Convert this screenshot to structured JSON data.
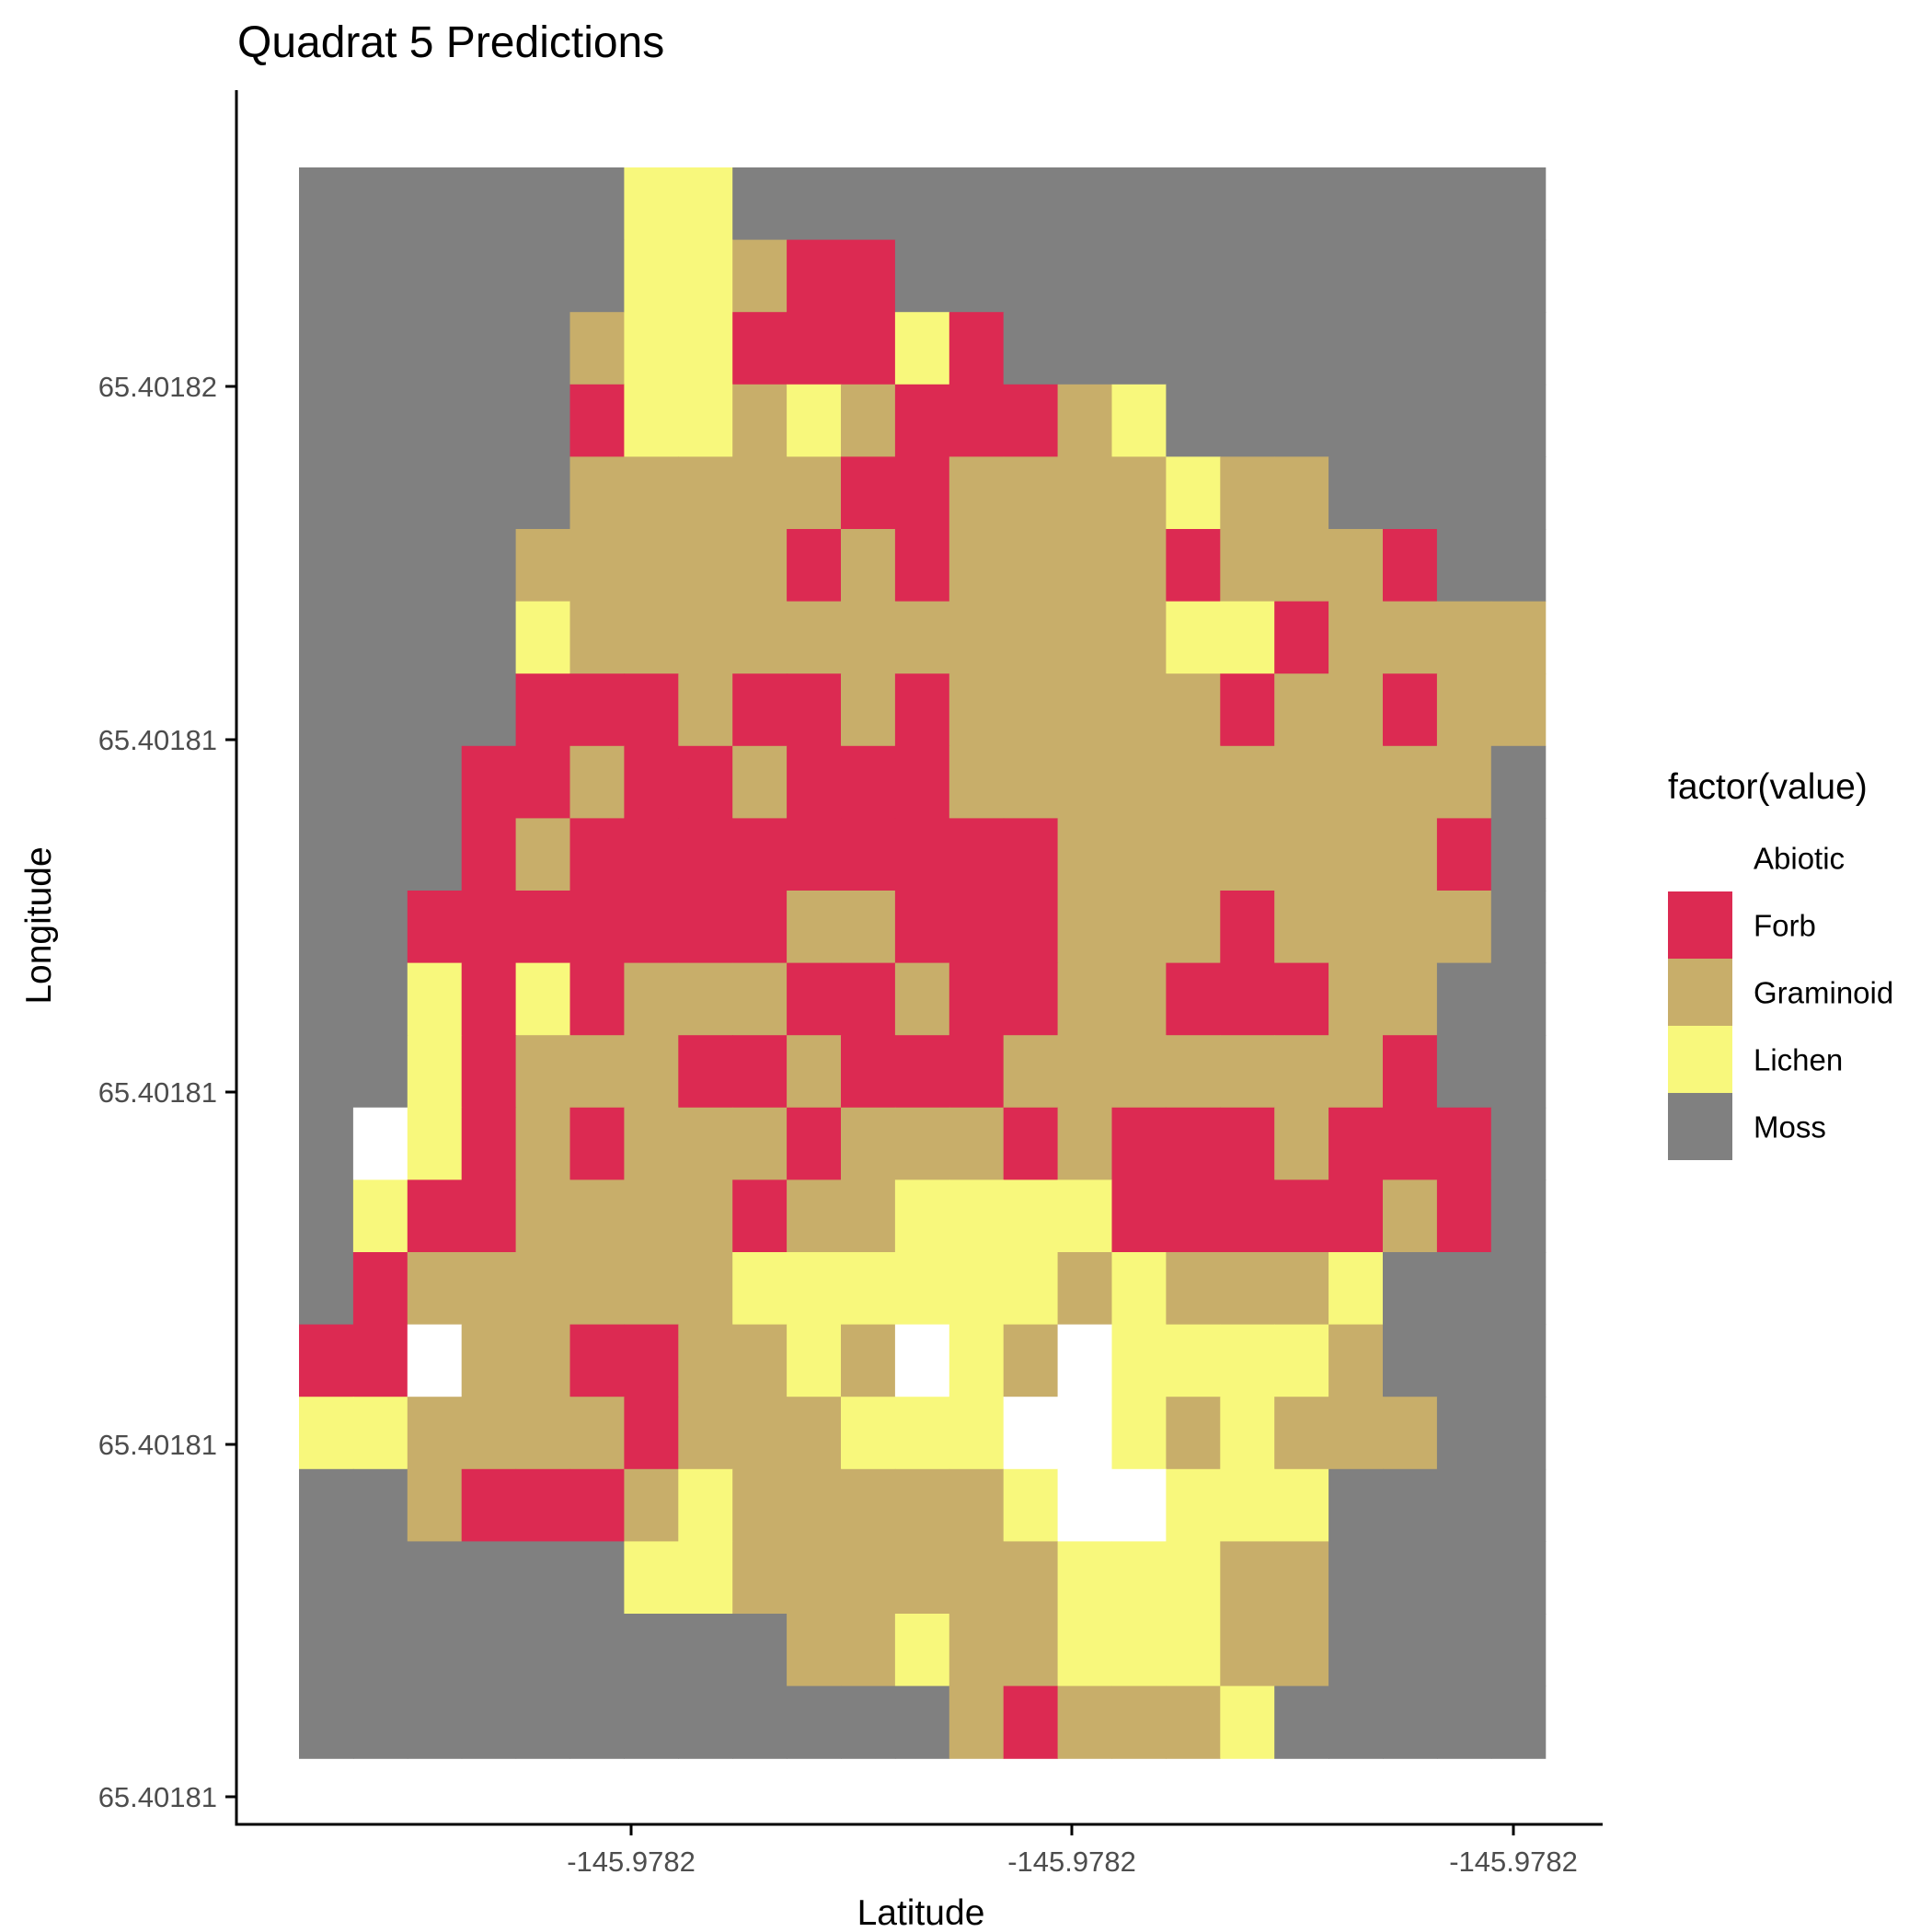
{
  "chart_data": {
    "type": "heatmap",
    "title": "Quadrat 5 Predictions",
    "xlabel": "Latitude",
    "ylabel": "Longitude",
    "x_tick_labels": [
      "-145.9782",
      "-145.9782",
      "-145.9782"
    ],
    "y_tick_labels": [
      "65.40182",
      "65.40181",
      "65.40181",
      "65.40181",
      "65.40181"
    ],
    "legend": {
      "title": "factor(value)",
      "position": "right",
      "entries": [
        {
          "code": "A",
          "label": "Abiotic",
          "color": "#ffffff"
        },
        {
          "code": "F",
          "label": "Forb",
          "color": "#dc2a52"
        },
        {
          "code": "G",
          "label": "Graminoid",
          "color": "#c8ae6a"
        },
        {
          "code": "L",
          "label": "Lichen",
          "color": "#f8f87c"
        },
        {
          "code": "M",
          "label": "Moss",
          "color": "#808080"
        }
      ]
    },
    "grid": false,
    "columns": 23,
    "rows": 22,
    "cells": [
      "MMMMMMLLMMMMMMMMMMMMMMM",
      "MMMMMMLLGFFMMMMMMMMMMMM",
      "MMMMMGLLFFFLFMMMMMMMMMM",
      "MMMMMFLLGLGFFFGLMMMMMMM",
      "MMMMMGGGGGFFGGGGLGGMMMM",
      "MMMMGGGGGFGFGGGGFGGGFMM",
      "MMMMLGGGGGGGGGGGLLFGGGG",
      "MMMMFFFGFFGFGGGGGFGGFGG",
      "MMMFFGFFGFFFGGGGGGGGGGM",
      "MMMFGFFFFFFFFFGGGGGGGFM",
      "MMFFFFFFFGGFFFGGGFGGGGM",
      "MMLFLFGGGFFGFFGGFFFGGMM",
      "MMLFGGGFFGFFFGGGGGGGFMM",
      "MALFGFGGGFGGGFGFFFGFFFM",
      "MLFFGGGGFGGLLLLFFFFFGFM",
      "MFGGGGGGLLLLLLGLGGGLMMM",
      "FFAGGFFGGLGALGALLLLGMMM",
      "LLGGGGFGGGLLLAALGLGGGMM",
      "MMGFFFGLGGGGGLAALLLMMMM",
      "MMMMMMLLGGGGGGLLLGGMMMM",
      "MMMMMMMMMGGLGGLLLGGMMMM",
      "MMMMMMMMMMMMGFGGGLMMMMM"
    ]
  }
}
